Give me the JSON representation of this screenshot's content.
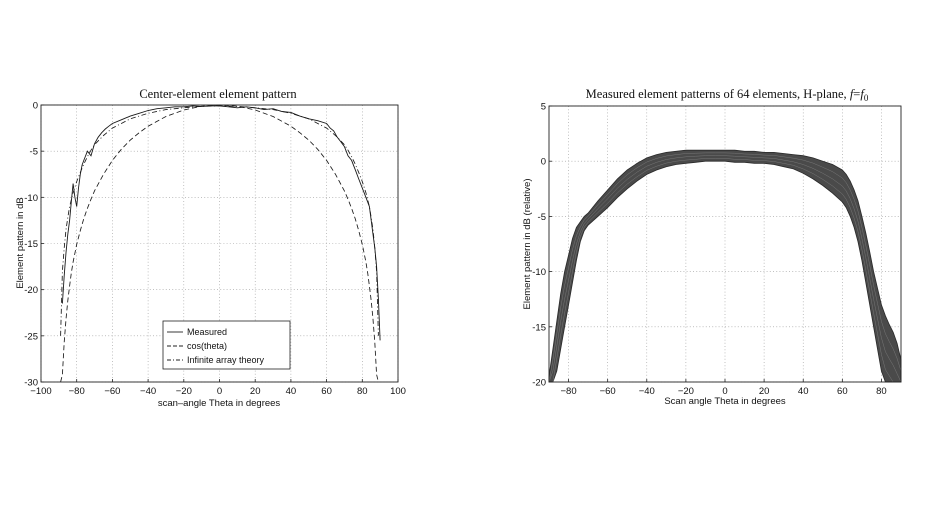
{
  "figure": {
    "left_title": "Center-element element pattern",
    "right_title_main": "Measured element patterns of 64 elements, H-plane, ",
    "right_title_f": "f",
    "right_title_eq": "=",
    "right_title_f0": "f",
    "right_title_sub": "0"
  },
  "chart_data": [
    {
      "type": "line",
      "title": "Center-element element pattern",
      "xlabel": "scan–angle Theta in degrees",
      "ylabel": "Element pattern in dB",
      "xlim": [
        -100,
        100
      ],
      "ylim": [
        -30,
        0
      ],
      "xticks": [
        -100,
        -80,
        -60,
        -40,
        -20,
        0,
        20,
        40,
        60,
        80,
        100
      ],
      "yticks": [
        0,
        -5,
        -10,
        -15,
        -20,
        -25,
        -30
      ],
      "xtick_labels": [
        "−100",
        "−80",
        "−60",
        "−40",
        "−20",
        "0",
        "20",
        "40",
        "60",
        "80",
        "100"
      ],
      "ytick_labels": [
        "0",
        "-5",
        "-10",
        "-15",
        "-20",
        "-25",
        "-30"
      ],
      "grid": true,
      "legend_position": "bottom-center",
      "series": [
        {
          "name": "Measured",
          "style": "solid",
          "x": [
            -88,
            -87,
            -86,
            -85,
            -84,
            -83,
            -82,
            -81,
            -80,
            -79,
            -78,
            -77,
            -76,
            -74,
            -72,
            -70,
            -68,
            -66,
            -64,
            -62,
            -60,
            -55,
            -50,
            -45,
            -40,
            -35,
            -30,
            -25,
            -20,
            -15,
            -10,
            -5,
            0,
            5,
            10,
            15,
            20,
            25,
            30,
            35,
            40,
            45,
            50,
            55,
            60,
            62,
            64,
            66,
            68,
            70,
            72,
            74,
            76,
            78,
            80,
            82,
            84,
            85,
            86,
            87,
            88,
            89,
            90
          ],
          "y": [
            -21.5,
            -18.5,
            -16,
            -14,
            -12.5,
            -10.5,
            -8.5,
            -10,
            -11,
            -9,
            -7.5,
            -6.5,
            -6,
            -5,
            -5.5,
            -4.2,
            -3.5,
            -3.0,
            -2.6,
            -2.3,
            -2.0,
            -1.6,
            -1.2,
            -0.9,
            -0.6,
            -0.4,
            -0.3,
            -0.2,
            -0.2,
            -0.1,
            -0.15,
            -0.1,
            -0.1,
            -0.2,
            -0.3,
            -0.2,
            -0.3,
            -0.5,
            -0.4,
            -0.7,
            -0.8,
            -1.2,
            -1.5,
            -1.7,
            -2.0,
            -2.5,
            -2.8,
            -3.5,
            -4.0,
            -4.5,
            -5.5,
            -6.0,
            -7.0,
            -8.0,
            -9.0,
            -10.0,
            -11.0,
            -12.5,
            -14.0,
            -15.5,
            -17.5,
            -21.0,
            -25.5
          ]
        },
        {
          "name": "cos(theta)",
          "style": "dashed",
          "x": [
            -89,
            -88,
            -87,
            -86,
            -85,
            -84,
            -83,
            -82,
            -80,
            -78,
            -76,
            -74,
            -72,
            -70,
            -65,
            -60,
            -55,
            -50,
            -45,
            -40,
            -30,
            -20,
            -10,
            0,
            10,
            20,
            30,
            40,
            45,
            50,
            55,
            60,
            65,
            70,
            72,
            74,
            76,
            78,
            80,
            82,
            83,
            84,
            85,
            86,
            87,
            88,
            89
          ],
          "y": [
            -35.2,
            -29.2,
            -25.7,
            -23.2,
            -21.2,
            -19.6,
            -18.2,
            -17.0,
            -15.1,
            -13.6,
            -12.3,
            -11.2,
            -10.2,
            -9.3,
            -7.5,
            -6.0,
            -4.8,
            -3.8,
            -3.0,
            -2.3,
            -1.25,
            -0.54,
            -0.13,
            0,
            -0.13,
            -0.54,
            -1.25,
            -2.3,
            -3.0,
            -3.8,
            -4.8,
            -6.0,
            -7.5,
            -9.3,
            -10.2,
            -11.2,
            -12.3,
            -13.6,
            -15.1,
            -17.0,
            -18.2,
            -19.6,
            -21.2,
            -23.2,
            -25.7,
            -29.2,
            -35.2
          ]
        },
        {
          "name": "Infinite array theory",
          "style": "dashdot",
          "x": [
            -89,
            -88,
            -87,
            -86,
            -85,
            -84,
            -82,
            -80,
            -78,
            -76,
            -74,
            -72,
            -70,
            -65,
            -60,
            -50,
            -40,
            -30,
            -20,
            -10,
            0,
            10,
            20,
            30,
            40,
            50,
            60,
            65,
            70,
            72,
            74,
            76,
            78,
            80,
            82,
            84,
            85,
            86,
            87,
            88,
            89
          ],
          "y": [
            -25,
            -18,
            -15.5,
            -13.5,
            -12.2,
            -11.0,
            -9.5,
            -8.3,
            -7.3,
            -6.4,
            -5.6,
            -4.9,
            -4.3,
            -3.3,
            -2.5,
            -1.5,
            -0.9,
            -0.5,
            -0.3,
            -0.15,
            -0.1,
            -0.15,
            -0.3,
            -0.5,
            -0.9,
            -1.5,
            -2.5,
            -3.3,
            -4.3,
            -4.9,
            -5.6,
            -6.4,
            -7.3,
            -8.3,
            -9.5,
            -11.0,
            -12.2,
            -13.5,
            -15.5,
            -18,
            -25
          ]
        }
      ]
    },
    {
      "type": "line",
      "title": "Measured element patterns of 64 elements, H-plane, f=f0",
      "xlabel": "Scan angle Theta in degrees",
      "ylabel": "Element pattern in dB (relative)",
      "xlim": [
        -90,
        90
      ],
      "ylim": [
        -20,
        5
      ],
      "xticks": [
        -80,
        -60,
        -40,
        -20,
        0,
        20,
        40,
        60,
        80
      ],
      "yticks": [
        5,
        0,
        -5,
        -10,
        -15,
        -20
      ],
      "xtick_labels": [
        "−80",
        "−60",
        "−40",
        "−20",
        "0",
        "20",
        "40",
        "60",
        "80"
      ],
      "ytick_labels": [
        "5",
        "0",
        "-5",
        "-10",
        "-15",
        "-20"
      ],
      "grid": true,
      "band": {
        "x": [
          -90,
          -88,
          -86,
          -84,
          -82,
          -80,
          -78,
          -76,
          -74,
          -72,
          -70,
          -65,
          -60,
          -55,
          -50,
          -45,
          -40,
          -35,
          -30,
          -25,
          -20,
          -15,
          -10,
          -5,
          0,
          5,
          10,
          15,
          20,
          25,
          30,
          35,
          40,
          45,
          50,
          55,
          60,
          62,
          64,
          66,
          68,
          70,
          72,
          74,
          76,
          78,
          80,
          82,
          84,
          86,
          88,
          90
        ],
        "upper": [
          -19.5,
          -17,
          -14.5,
          -12,
          -10,
          -8.5,
          -7,
          -6,
          -5.5,
          -5,
          -4.7,
          -3.6,
          -2.6,
          -1.6,
          -0.8,
          -0.2,
          0.3,
          0.6,
          0.8,
          0.9,
          1.0,
          1.0,
          1.0,
          1.0,
          1.0,
          1.0,
          0.9,
          0.9,
          0.8,
          0.8,
          0.7,
          0.6,
          0.5,
          0.3,
          0.0,
          -0.3,
          -0.8,
          -1.2,
          -1.8,
          -2.6,
          -3.6,
          -5.0,
          -6.5,
          -8.2,
          -10.0,
          -11.5,
          -13.0,
          -14.0,
          -14.8,
          -15.5,
          -16.5,
          -18.0
        ],
        "lower": [
          -22,
          -21,
          -19,
          -17,
          -15,
          -13,
          -11,
          -9,
          -7.3,
          -6.3,
          -5.8,
          -5.0,
          -4.2,
          -3.3,
          -2.5,
          -1.8,
          -1.2,
          -0.8,
          -0.5,
          -0.3,
          -0.2,
          -0.1,
          0.0,
          0.0,
          0.0,
          -0.1,
          -0.1,
          -0.2,
          -0.2,
          -0.3,
          -0.5,
          -0.7,
          -1.1,
          -1.6,
          -2.2,
          -2.9,
          -3.7,
          -4.2,
          -5.0,
          -6.0,
          -7.3,
          -9.0,
          -11.0,
          -13.0,
          -15.0,
          -17.0,
          -19.0,
          -20.5,
          -21.0,
          -21.5,
          -22,
          -22
        ]
      }
    }
  ]
}
